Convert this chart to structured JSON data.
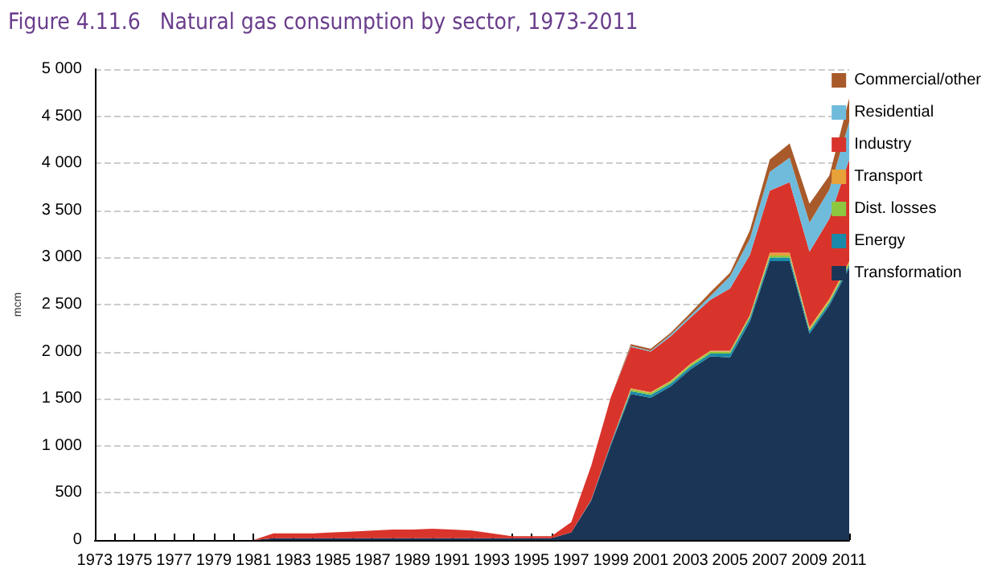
{
  "chart_data": {
    "type": "area",
    "stacked": true,
    "title": "Figure 4.11.6   Natural gas consumption by sector, 1973-2011",
    "ylabel": "mcm",
    "x": [
      1973,
      1974,
      1975,
      1976,
      1977,
      1978,
      1979,
      1980,
      1981,
      1982,
      1983,
      1984,
      1985,
      1986,
      1987,
      1988,
      1989,
      1990,
      1991,
      1992,
      1993,
      1994,
      1995,
      1996,
      1997,
      1998,
      1999,
      2000,
      2001,
      2002,
      2003,
      2004,
      2005,
      2006,
      2007,
      2008,
      2009,
      2010,
      2011
    ],
    "series": [
      {
        "name": "Transformation",
        "color": "#1b3557",
        "values": [
          0,
          0,
          0,
          0,
          0,
          0,
          0,
          0,
          0,
          20,
          20,
          20,
          20,
          20,
          20,
          20,
          20,
          20,
          20,
          20,
          20,
          20,
          20,
          20,
          80,
          415,
          1010,
          1550,
          1510,
          1630,
          1810,
          1950,
          1940,
          2320,
          2960,
          2960,
          2190,
          2490,
          2890
        ]
      },
      {
        "name": "Energy",
        "color": "#1a8aa8",
        "values": [
          0,
          0,
          0,
          0,
          0,
          0,
          0,
          0,
          0,
          0,
          0,
          0,
          0,
          0,
          0,
          0,
          0,
          0,
          0,
          0,
          0,
          0,
          0,
          0,
          0,
          10,
          20,
          30,
          30,
          30,
          30,
          30,
          40,
          40,
          40,
          40,
          30,
          30,
          30
        ]
      },
      {
        "name": "Dist. losses",
        "color": "#8dc63f",
        "values": [
          0,
          0,
          0,
          0,
          0,
          0,
          0,
          0,
          0,
          0,
          0,
          0,
          0,
          0,
          0,
          0,
          0,
          0,
          0,
          0,
          0,
          0,
          0,
          0,
          0,
          0,
          0,
          20,
          20,
          20,
          20,
          20,
          20,
          20,
          20,
          20,
          20,
          20,
          20
        ]
      },
      {
        "name": "Transport",
        "color": "#e8a23a",
        "values": [
          0,
          0,
          0,
          0,
          0,
          0,
          0,
          0,
          0,
          0,
          0,
          0,
          0,
          0,
          0,
          0,
          0,
          0,
          0,
          0,
          0,
          0,
          0,
          0,
          0,
          0,
          0,
          10,
          10,
          10,
          10,
          10,
          10,
          10,
          30,
          30,
          20,
          20,
          20
        ]
      },
      {
        "name": "Industry",
        "color": "#d9342b",
        "values": [
          0,
          0,
          0,
          0,
          0,
          0,
          0,
          0,
          0,
          50,
          50,
          50,
          60,
          70,
          80,
          90,
          90,
          100,
          90,
          80,
          50,
          20,
          20,
          20,
          110,
          360,
          490,
          440,
          430,
          470,
          490,
          540,
          660,
          640,
          660,
          750,
          800,
          850,
          1080
        ]
      },
      {
        "name": "Residential",
        "color": "#6fbbdc",
        "values": [
          0,
          0,
          0,
          0,
          0,
          0,
          0,
          0,
          0,
          0,
          0,
          0,
          0,
          0,
          0,
          0,
          0,
          0,
          0,
          0,
          0,
          0,
          0,
          0,
          0,
          0,
          0,
          10,
          10,
          20,
          20,
          40,
          130,
          170,
          200,
          260,
          310,
          310,
          400
        ]
      },
      {
        "name": "Commercial/other",
        "color": "#a95a2a",
        "values": [
          0,
          0,
          0,
          0,
          0,
          0,
          0,
          0,
          0,
          0,
          0,
          0,
          0,
          0,
          0,
          0,
          0,
          0,
          0,
          0,
          0,
          0,
          0,
          0,
          0,
          0,
          0,
          20,
          20,
          20,
          30,
          40,
          40,
          90,
          130,
          150,
          200,
          150,
          250
        ]
      }
    ],
    "xlim": [
      1973,
      2011
    ],
    "xticks": [
      1973,
      {
        "value": 1974,
        "label": null
      },
      1975,
      {
        "value": 1976,
        "label": null
      },
      1977,
      {
        "value": 1978,
        "label": null
      },
      1979,
      {
        "value": 1980,
        "label": null
      },
      1981,
      {
        "value": 1982,
        "label": null
      },
      1983,
      {
        "value": 1984,
        "label": null
      },
      1985,
      {
        "value": 1986,
        "label": null
      },
      1987,
      {
        "value": 1988,
        "label": null
      },
      1989,
      {
        "value": 1990,
        "label": null
      },
      1991,
      {
        "value": 1992,
        "label": null
      },
      1993,
      {
        "value": 1994,
        "label": null
      },
      1995,
      {
        "value": 1996,
        "label": null
      },
      1997,
      {
        "value": 1998,
        "label": null
      },
      1999,
      {
        "value": 2000,
        "label": null
      },
      2001,
      {
        "value": 2002,
        "label": null
      },
      2003,
      {
        "value": 2004,
        "label": null
      },
      2005,
      {
        "value": 2006,
        "label": null
      },
      2007,
      {
        "value": 2008,
        "label": null
      },
      2009,
      {
        "value": 2010,
        "label": null
      },
      2011
    ],
    "ylim": [
      0,
      5000
    ],
    "yticks": [
      0,
      500,
      {
        "value": 1000,
        "label": "1 000"
      },
      {
        "value": 1500,
        "label": "1 500"
      },
      {
        "value": 2000,
        "label": "2 000"
      },
      {
        "value": 2500,
        "label": "2 500"
      },
      {
        "value": 3000,
        "label": "3 000"
      },
      {
        "value": 3500,
        "label": "3 500"
      },
      {
        "value": 4000,
        "label": "4 000"
      },
      {
        "value": 4500,
        "label": "4 500"
      },
      {
        "value": 5000,
        "label": "5 000"
      }
    ],
    "grid": "y",
    "legend": "right",
    "marker": "none"
  }
}
